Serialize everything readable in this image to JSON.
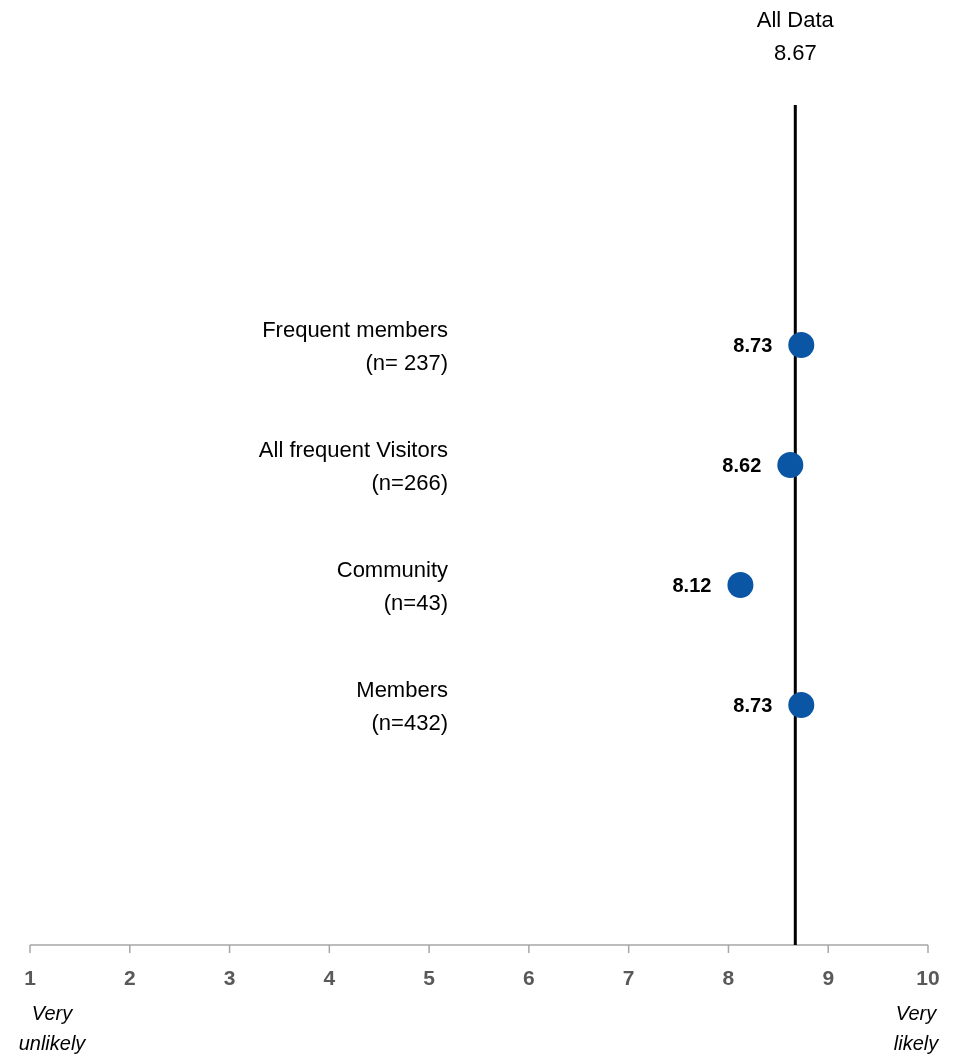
{
  "chart_data": {
    "type": "scatter",
    "orientation": "horizontal",
    "categories": [
      "Frequent members\n(n= 237)",
      "All frequent Visitors\n(n=266)",
      "Community\n(n=43)",
      "Members\n(n=432)"
    ],
    "values": [
      8.73,
      8.62,
      8.12,
      8.73
    ],
    "color": "#0b56a4",
    "marker": "circle",
    "data_labels": true,
    "xlim": [
      1,
      10
    ],
    "xticks": [
      1,
      2,
      3,
      4,
      5,
      6,
      7,
      8,
      9,
      10
    ],
    "ref_lines": [
      {
        "axis": "x",
        "value": 8.67,
        "label": "All Data\n8.67",
        "color": "#000000"
      }
    ],
    "annotations": [
      "Very\nunlikely",
      "Very\nlikely"
    ]
  }
}
